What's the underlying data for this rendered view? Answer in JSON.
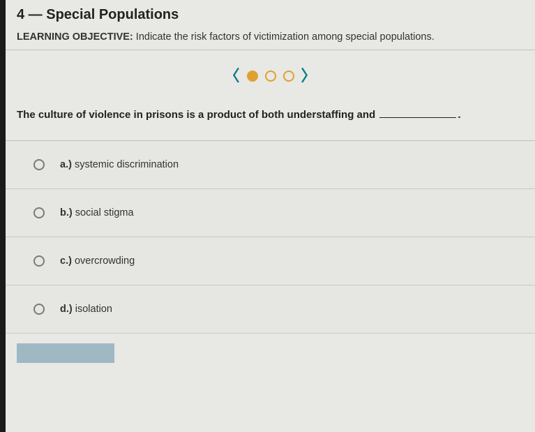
{
  "header": {
    "title": "4 — Special Populations",
    "objective_label": "LEARNING OBJECTIVE:",
    "objective_text": "Indicate the risk factors of victimization among special populations."
  },
  "pager": {
    "prev_glyph": "〈",
    "next_glyph": "〉",
    "dots": [
      {
        "filled": true
      },
      {
        "filled": false
      },
      {
        "filled": false
      }
    ],
    "chevron_color": "#0a7a8a",
    "dot_color": "#e0a030"
  },
  "question": {
    "stem_before": "The culture of violence in prisons is a product of both understaffing and",
    "stem_after": "."
  },
  "options": [
    {
      "letter": "a.)",
      "text": "systemic discrimination"
    },
    {
      "letter": "b.)",
      "text": "social stigma"
    },
    {
      "letter": "c.)",
      "text": "overcrowding"
    },
    {
      "letter": "d.)",
      "text": "isolation"
    }
  ],
  "colors": {
    "page_bg": "#e8e8e4",
    "border": "#c0c0bc",
    "text": "#2a2a2a"
  }
}
